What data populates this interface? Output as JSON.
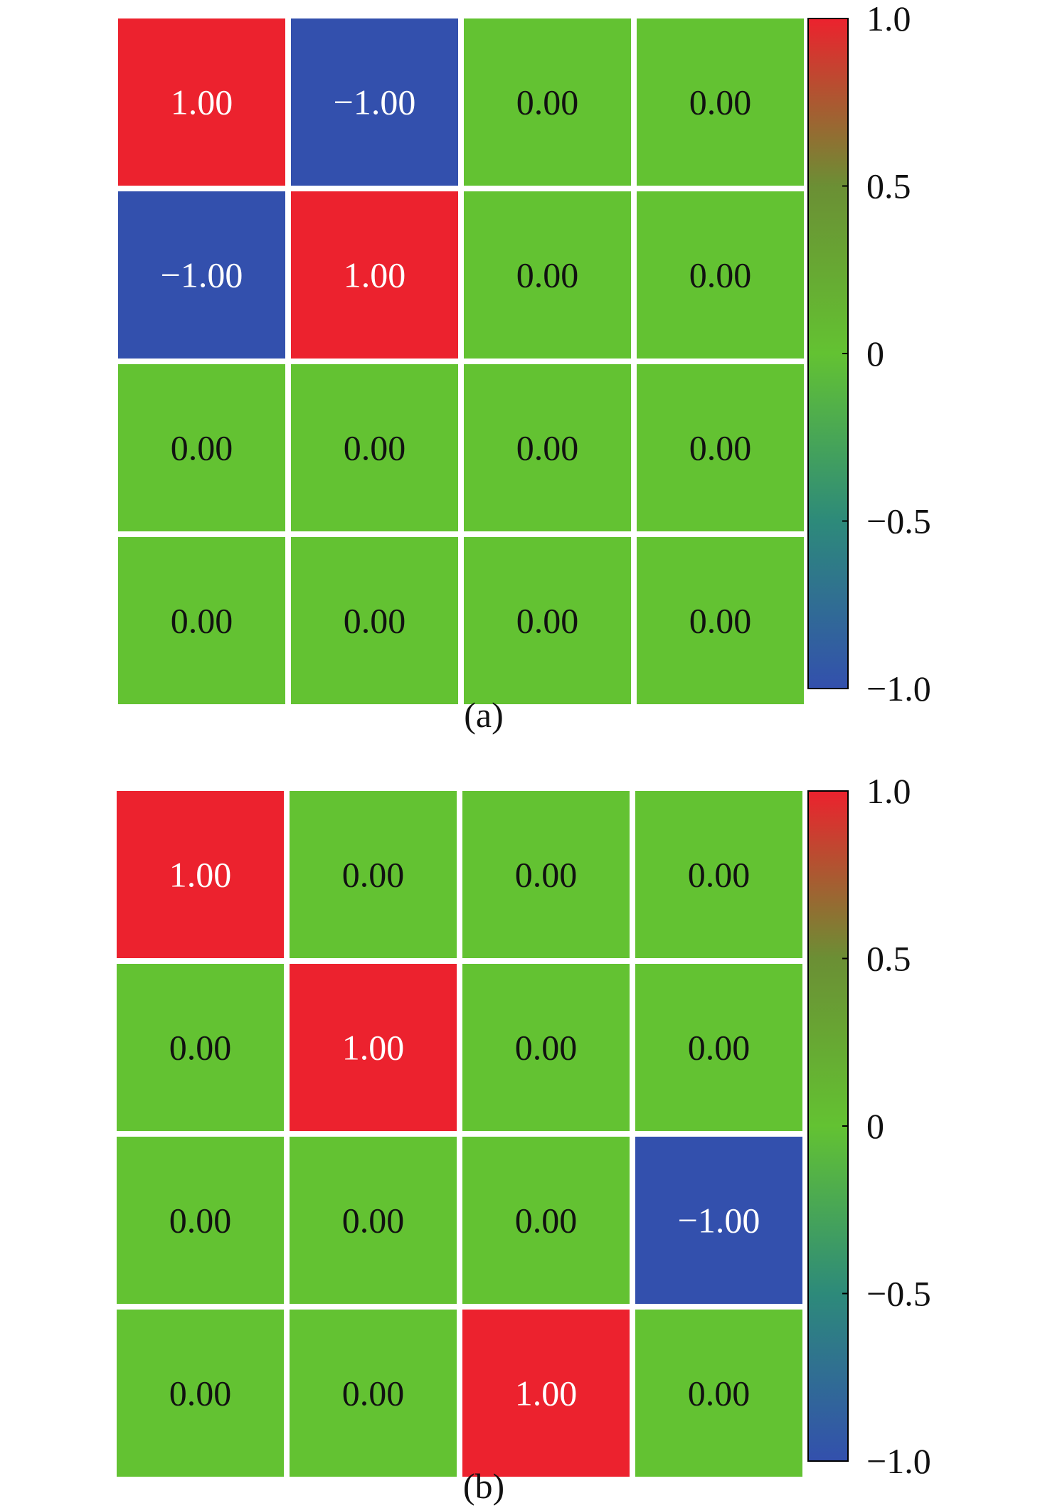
{
  "chart_data": [
    {
      "type": "heatmap",
      "caption": "(a)",
      "matrix": [
        [
          1.0,
          -1.0,
          0.0,
          0.0
        ],
        [
          -1.0,
          1.0,
          0.0,
          0.0
        ],
        [
          0.0,
          0.0,
          0.0,
          0.0
        ],
        [
          0.0,
          0.0,
          0.0,
          0.0
        ]
      ],
      "value_format": "0.00",
      "colorbar": {
        "range": [
          -1.0,
          1.0
        ],
        "ticks": [
          1.0,
          0.5,
          0,
          -0.5,
          -1.0
        ],
        "tick_labels": [
          "1.0",
          "0.5",
          "0",
          "−0.5",
          "−1.0"
        ]
      }
    },
    {
      "type": "heatmap",
      "caption": "(b)",
      "matrix": [
        [
          1.0,
          0.0,
          0.0,
          0.0
        ],
        [
          0.0,
          1.0,
          0.0,
          0.0
        ],
        [
          0.0,
          0.0,
          0.0,
          -1.0
        ],
        [
          0.0,
          0.0,
          1.0,
          0.0
        ]
      ],
      "value_format": "0.00",
      "colorbar": {
        "range": [
          -1.0,
          1.0
        ],
        "ticks": [
          1.0,
          0.5,
          0,
          -0.5,
          -1.0
        ],
        "tick_labels": [
          "1.0",
          "0.5",
          "0",
          "−0.5",
          "−1.0"
        ]
      }
    }
  ],
  "colors": {
    "negative": "#3350AD",
    "zero": "#63C232",
    "positive": "#EC222E",
    "mid_positive": "#6B8F34",
    "mid_negative": "#2D8A7A",
    "label_light": "#FFFFFF",
    "label_dark": "#111111",
    "axis": "#000000",
    "cell_gap": "#E8E8E8"
  }
}
